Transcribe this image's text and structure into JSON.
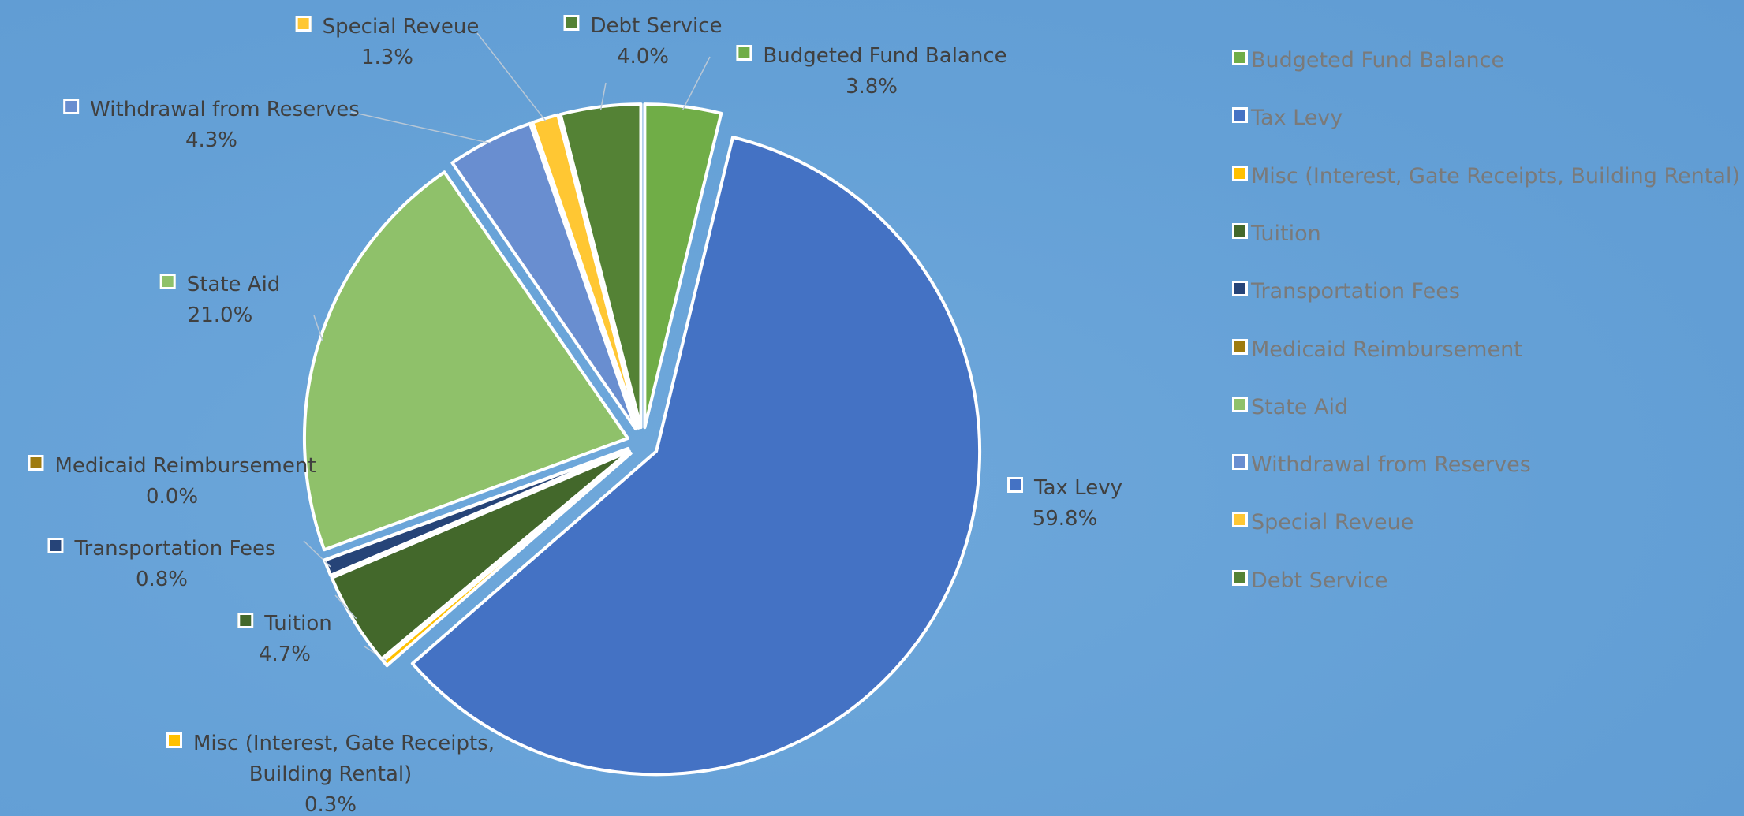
{
  "chart_data": {
    "type": "pie",
    "categories": [
      "Budgeted Fund Balance",
      "Tax Levy",
      "Misc (Interest, Gate Receipts, Building Rental)",
      "Tuition",
      "Transportation Fees",
      "Medicaid Reimbursement",
      "State Aid",
      "Withdrawal from Reserves",
      "Special Reveue",
      "Debt Service"
    ],
    "values": [
      3.8,
      59.8,
      0.3,
      4.7,
      0.8,
      0.0,
      21.0,
      4.3,
      1.3,
      4.0
    ],
    "value_labels": [
      "3.8%",
      "59.8%",
      "0.3%",
      "4.7%",
      "0.8%",
      "0.0%",
      "21.0%",
      "4.3%",
      "1.3%",
      "4.0%"
    ],
    "colors": [
      "#70ad47",
      "#4472c4",
      "#ffc000",
      "#43682b",
      "#264478",
      "#9e7b0f",
      "#8fc16a",
      "#698ed0",
      "#ffc733",
      "#548235"
    ],
    "legend": "right"
  }
}
